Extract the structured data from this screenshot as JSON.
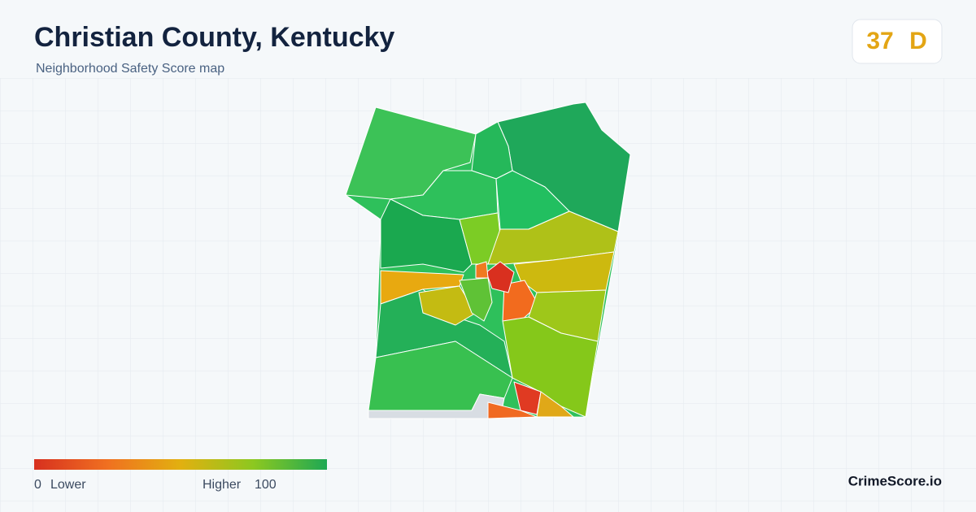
{
  "header": {
    "title": "Christian County, Kentucky",
    "subtitle": "Neighborhood Safety Score map"
  },
  "score": {
    "value": 37,
    "grade": "D"
  },
  "legend": {
    "min": 0,
    "min_label": "Lower",
    "max_label": "Higher",
    "max": 100
  },
  "brand": "CrimeScore.io"
}
